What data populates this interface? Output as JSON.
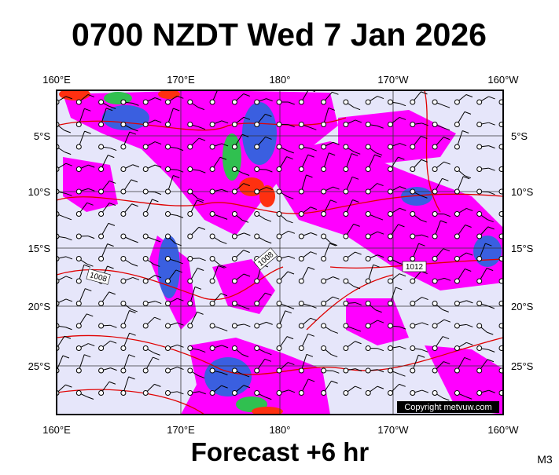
{
  "header": {
    "title": "0700 NZDT Wed 7 Jan 2026"
  },
  "map": {
    "longitude_labels": [
      "160°E",
      "170°E",
      "180°",
      "170°W",
      "160°W"
    ],
    "latitude_labels": [
      "5°S",
      "10°S",
      "15°S",
      "20°S",
      "25°S"
    ],
    "isobar_labels": [
      "1008",
      "1008",
      "1012"
    ],
    "copyright": "Copyright metvuw.com"
  },
  "footer": {
    "subtitle": "Forecast +6 hr",
    "model": "M3"
  }
}
